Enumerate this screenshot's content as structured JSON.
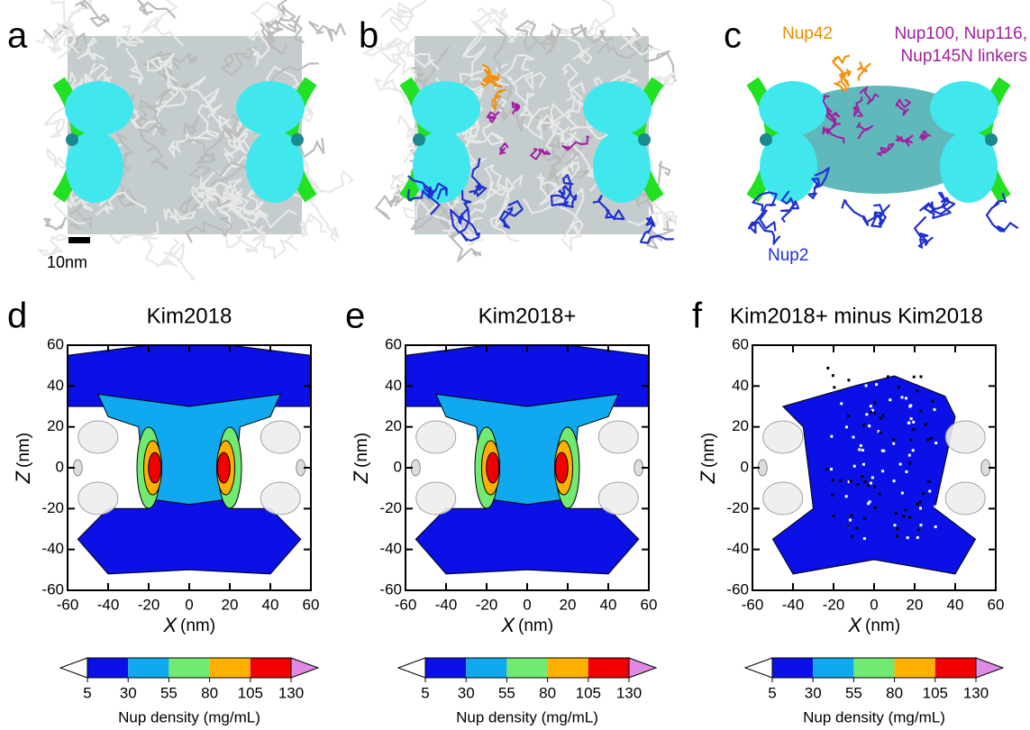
{
  "top_panels": [
    {
      "letter": "a"
    },
    {
      "letter": "b"
    },
    {
      "letter": "c",
      "labels": {
        "nup42": "Nup42",
        "linkers_1": "Nup100, Nup116,",
        "linkers_2": "Nup145N linkers",
        "nup2": "Nup2"
      }
    }
  ],
  "scale_bar": "10nm",
  "plots": [
    {
      "letter": "d",
      "title": "Kim2018"
    },
    {
      "letter": "e",
      "title": "Kim2018+"
    },
    {
      "letter": "f",
      "title": "Kim2018+ minus Kim2018"
    }
  ],
  "axes": {
    "xlim": [
      -60,
      60
    ],
    "ylim": [
      -60,
      60
    ],
    "xticks": [
      -60,
      -40,
      -20,
      0,
      20,
      40,
      60
    ],
    "yticks": [
      -60,
      -40,
      -20,
      0,
      20,
      40,
      60
    ],
    "x_symbol": "X",
    "y_symbol": "Z",
    "unit": "(nm)"
  },
  "colorbar": {
    "ticks": [
      5,
      30,
      55,
      80,
      105,
      130
    ],
    "colors": [
      "#0a10e6",
      "#10a8ee",
      "#70ea70",
      "#ffb000",
      "#f00000"
    ],
    "under_color": "#ffffff",
    "over_color": "#e08ae6",
    "label": "Nup density (mg/mL)"
  }
}
